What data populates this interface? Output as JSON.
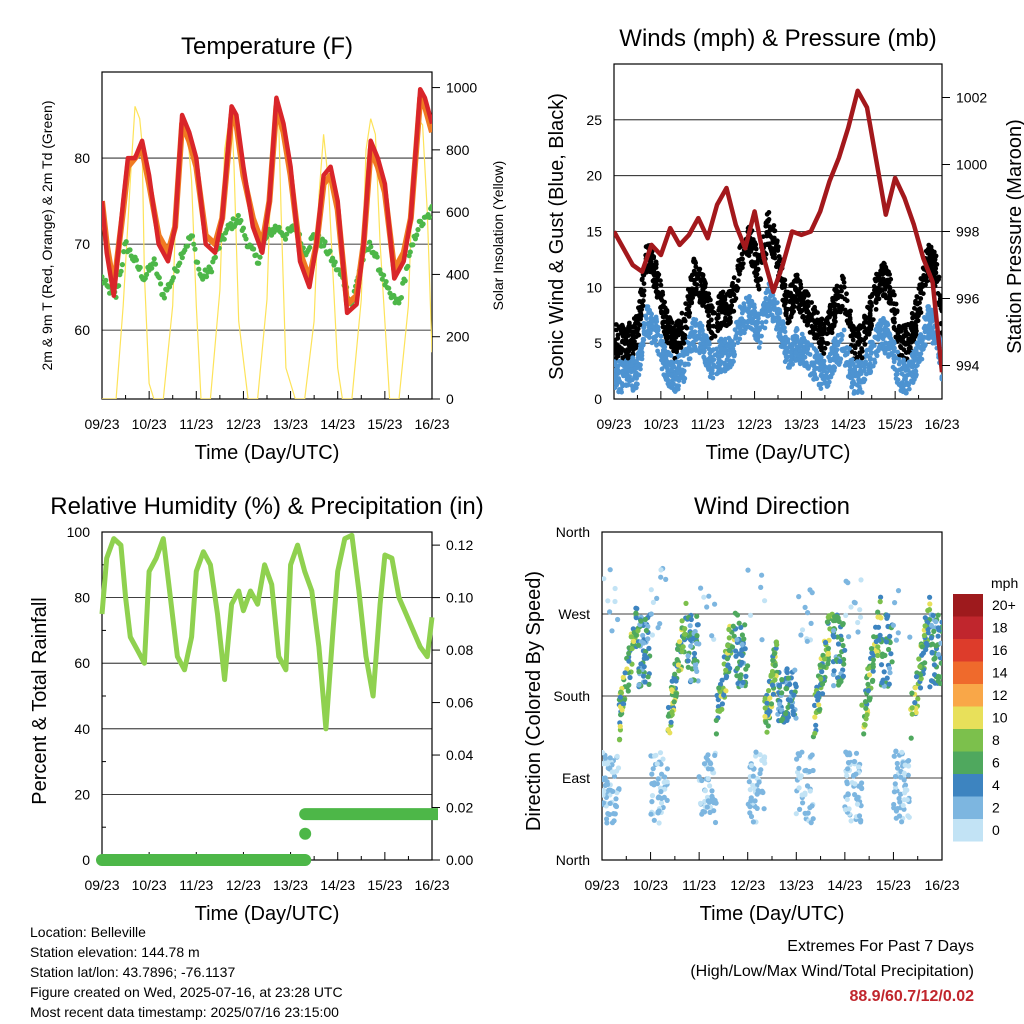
{
  "colors": {
    "temp_2m": "#d9252a",
    "temp_9m": "#f07b22",
    "dewpoint": "#4db748",
    "solar": "#fde35a",
    "gust": "#000000",
    "wind": "#4d93d1",
    "pressure": "#a3181c",
    "humidity": "#8fd14f",
    "precip": "#4db748",
    "extremes": "#c0262d"
  },
  "x_ticks": [
    "09/23",
    "10/23",
    "11/23",
    "12/23",
    "13/23",
    "14/23",
    "15/23",
    "16/23"
  ],
  "chart_data": [
    {
      "type": "line",
      "title": "Temperature (F)",
      "xlabel": "Time (Day/UTC)",
      "ylabel": "2m & 9m T (Red, Orange) & 2m Td (Green)",
      "y2label": "Solar Insolation (Yellow)",
      "x_range": [
        0,
        7
      ],
      "ylim": [
        52,
        90
      ],
      "y_ticks": [
        60,
        70,
        80
      ],
      "y2lim": [
        0,
        1050
      ],
      "y2_ticks": [
        0,
        200,
        400,
        600,
        800,
        1000
      ],
      "series": [
        {
          "key": "t2m",
          "axis": "left",
          "x": [
            0,
            0.1,
            0.25,
            0.45,
            0.55,
            0.7,
            0.85,
            1.0,
            1.2,
            1.4,
            1.55,
            1.7,
            1.85,
            2.0,
            2.2,
            2.4,
            2.55,
            2.75,
            2.85,
            3.0,
            3.2,
            3.4,
            3.55,
            3.7,
            3.85,
            4.0,
            4.2,
            4.4,
            4.55,
            4.7,
            4.85,
            5.0,
            5.2,
            5.4,
            5.55,
            5.7,
            5.85,
            6.0,
            6.2,
            6.4,
            6.55,
            6.75,
            6.85,
            7.0
          ],
          "y": [
            75,
            69,
            64,
            75,
            80,
            80,
            82,
            78,
            70,
            68,
            72,
            85,
            83,
            80,
            70,
            69,
            73,
            86,
            85,
            79,
            72,
            69,
            75,
            87,
            84,
            79,
            68,
            65,
            70,
            78,
            79,
            75,
            62,
            63,
            70,
            82,
            80,
            77,
            66,
            68,
            73,
            88,
            87,
            84
          ]
        },
        {
          "key": "t9m",
          "axis": "left",
          "x": [
            0,
            0.1,
            0.25,
            0.45,
            0.55,
            0.7,
            0.85,
            1.0,
            1.2,
            1.4,
            1.55,
            1.7,
            1.85,
            2.0,
            2.2,
            2.4,
            2.55,
            2.75,
            2.85,
            3.0,
            3.2,
            3.4,
            3.55,
            3.7,
            3.85,
            4.0,
            4.2,
            4.4,
            4.55,
            4.7,
            4.85,
            5.0,
            5.2,
            5.4,
            5.55,
            5.7,
            5.85,
            6.0,
            6.2,
            6.4,
            6.55,
            6.75,
            6.85,
            7.0
          ],
          "y": [
            75,
            70,
            65,
            74,
            79,
            80,
            81,
            77,
            71,
            69,
            72,
            84,
            82,
            79,
            71,
            70,
            73,
            85,
            84,
            78,
            73,
            70,
            75,
            86,
            83,
            78,
            69,
            66,
            70,
            77,
            78,
            74,
            63,
            64,
            70,
            81,
            79,
            76,
            67,
            69,
            73,
            87,
            86,
            83
          ]
        },
        {
          "key": "td",
          "axis": "left",
          "x": [
            0,
            0.1,
            0.3,
            0.5,
            0.7,
            0.9,
            1.1,
            1.3,
            1.5,
            1.7,
            1.9,
            2.1,
            2.3,
            2.5,
            2.7,
            2.9,
            3.1,
            3.3,
            3.5,
            3.7,
            3.9,
            4.1,
            4.3,
            4.5,
            4.7,
            4.9,
            5.1,
            5.3,
            5.5,
            5.7,
            5.9,
            6.1,
            6.3,
            6.5,
            6.7,
            6.9,
            7.0
          ],
          "y": [
            66,
            65,
            64,
            70,
            68,
            66,
            68,
            64,
            66,
            69,
            71,
            66,
            67,
            70,
            72,
            73,
            70,
            68,
            71,
            72,
            71,
            72,
            69,
            71,
            70,
            68,
            66,
            63,
            68,
            70,
            67,
            64,
            63,
            68,
            72,
            73,
            74
          ]
        },
        {
          "key": "solar",
          "axis": "right",
          "x": [
            0,
            0.1,
            0.3,
            0.45,
            0.6,
            0.7,
            0.8,
            0.85,
            0.9,
            1.0,
            1.1,
            1.3,
            1.5,
            1.6,
            1.7,
            1.8,
            1.9,
            2.0,
            2.1,
            2.3,
            2.5,
            2.6,
            2.7,
            2.75,
            2.8,
            2.9,
            3.1,
            3.3,
            3.5,
            3.6,
            3.7,
            3.75,
            3.8,
            3.9,
            4.1,
            4.3,
            4.5,
            4.6,
            4.7,
            4.8,
            4.9,
            5.0,
            5.1,
            5.3,
            5.5,
            5.6,
            5.7,
            5.8,
            5.9,
            6.1,
            6.3,
            6.5,
            6.6,
            6.7,
            6.8,
            6.9,
            7.0
          ],
          "y": [
            0,
            0,
            0,
            300,
            700,
            940,
            900,
            820,
            400,
            50,
            0,
            0,
            300,
            750,
            900,
            880,
            700,
            300,
            0,
            0,
            350,
            800,
            900,
            920,
            750,
            250,
            0,
            0,
            320,
            800,
            900,
            880,
            600,
            100,
            0,
            0,
            250,
            650,
            850,
            700,
            400,
            100,
            0,
            0,
            320,
            800,
            900,
            850,
            500,
            0,
            0,
            300,
            750,
            900,
            880,
            600,
            150
          ]
        }
      ]
    },
    {
      "type": "scatter",
      "title": "Winds (mph) & Pressure (mb)",
      "xlabel": "Time (Day/UTC)",
      "ylabel": "Sonic Wind & Gust (Blue, Black)",
      "y2label": "Station Pressure (Maroon)",
      "x_range": [
        0,
        7
      ],
      "ylim": [
        0,
        30
      ],
      "y_ticks": [
        0,
        5,
        10,
        15,
        20,
        25
      ],
      "y2lim": [
        993,
        1003
      ],
      "y2_ticks": [
        994,
        996,
        998,
        1000,
        1002
      ],
      "series": [
        {
          "key": "pressure",
          "axis": "right",
          "x": [
            0,
            0.2,
            0.4,
            0.6,
            0.8,
            1.0,
            1.2,
            1.4,
            1.6,
            1.8,
            2.0,
            2.2,
            2.4,
            2.6,
            2.8,
            3.0,
            3.2,
            3.4,
            3.6,
            3.8,
            4.0,
            4.2,
            4.4,
            4.6,
            4.8,
            5.0,
            5.2,
            5.4,
            5.6,
            5.8,
            6.0,
            6.2,
            6.4,
            6.6,
            6.8,
            7.0
          ],
          "y": [
            998,
            997.5,
            997,
            996.8,
            997.6,
            997.3,
            998.1,
            997.6,
            997.9,
            998.4,
            997.8,
            998.8,
            999.3,
            998.2,
            997.5,
            998.6,
            997.2,
            996.2,
            997.0,
            998.0,
            997.9,
            998.0,
            998.6,
            999.5,
            1000.2,
            1001.1,
            1002.2,
            1001.7,
            1000.1,
            998.5,
            999.6,
            999.0,
            998.2,
            997.2,
            996.5,
            993.8
          ]
        }
      ]
    },
    {
      "type": "line",
      "title": "Relative Humidity (%) & Precipitation (in)",
      "xlabel": "Time (Day/UTC)",
      "ylabel": "Percent & Total Rainfall",
      "x_range": [
        0,
        7
      ],
      "ylim": [
        0,
        100
      ],
      "y_ticks": [
        0,
        20,
        40,
        60,
        80,
        100
      ],
      "y2lim": [
        0,
        0.125
      ],
      "y2_ticks": [
        "0.00",
        "0.02",
        "0.04",
        "0.06",
        "0.08",
        "0.10",
        "0.12"
      ],
      "series": [
        {
          "key": "rh",
          "axis": "left",
          "x": [
            0,
            0.1,
            0.25,
            0.4,
            0.5,
            0.6,
            0.75,
            0.9,
            1.0,
            1.15,
            1.3,
            1.45,
            1.6,
            1.75,
            1.9,
            2.0,
            2.15,
            2.3,
            2.45,
            2.6,
            2.75,
            2.9,
            3.0,
            3.15,
            3.3,
            3.45,
            3.6,
            3.75,
            3.9,
            4.0,
            4.15,
            4.3,
            4.45,
            4.6,
            4.75,
            4.9,
            5.0,
            5.15,
            5.3,
            5.45,
            5.6,
            5.75,
            5.9,
            6.0,
            6.15,
            6.3,
            6.45,
            6.6,
            6.75,
            6.9,
            7.0
          ],
          "y": [
            75,
            92,
            98,
            96,
            80,
            68,
            64,
            60,
            88,
            92,
            98,
            80,
            62,
            58,
            68,
            88,
            94,
            90,
            75,
            55,
            78,
            82,
            76,
            82,
            78,
            90,
            84,
            62,
            58,
            90,
            96,
            88,
            82,
            65,
            40,
            70,
            88,
            98,
            99,
            82,
            62,
            50,
            78,
            93,
            92,
            80,
            75,
            70,
            65,
            62,
            74
          ]
        },
        {
          "key": "precip",
          "axis": "right",
          "x": [
            0,
            4.3,
            4.3,
            4.31,
            4.31,
            7.0
          ],
          "y": [
            0,
            0,
            0.01,
            0.01,
            0.0175,
            0.0175
          ]
        }
      ]
    },
    {
      "type": "scatter",
      "title": "Wind Direction",
      "xlabel": "Time (Day/UTC)",
      "ylabel": "Direction (Colored By Speed)",
      "x_range": [
        0,
        7
      ],
      "ylim": [
        0,
        360
      ],
      "y_ticks": [
        "North",
        "East",
        "South",
        "West",
        "North"
      ],
      "legend": {
        "title": "mph",
        "labels": [
          "20+",
          "18",
          "16",
          "14",
          "12",
          "10",
          "8",
          "6",
          "4",
          "2",
          "0"
        ],
        "colors": [
          "#9e1a1d",
          "#c0262d",
          "#dd3c2b",
          "#ef6a2c",
          "#f9a748",
          "#e8e05a",
          "#7cc04c",
          "#4fa85e",
          "#3d84c0",
          "#7db6e0",
          "#c2e3f5"
        ]
      }
    }
  ],
  "info": {
    "location": "Location: Belleville",
    "elevation": "Station elevation: 144.78 m",
    "latlon": "Station lat/lon: 43.7896; -76.1137",
    "created": "Figure created on Wed, 2025-07-16, at 23:28 UTC",
    "recent": "Most recent data timestamp: 2025/07/16 23:15:00"
  },
  "extremes": {
    "title": "Extremes For Past 7 Days",
    "subtitle": "(High/Low/Max Wind/Total Precipitation)",
    "values": "88.9/60.7/12/0.02"
  }
}
